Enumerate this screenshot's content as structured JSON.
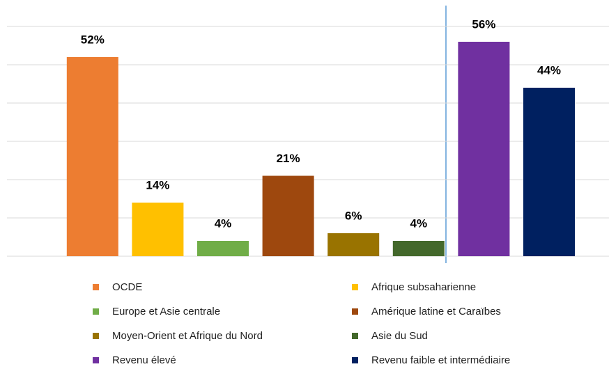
{
  "chart_data": {
    "type": "bar",
    "categories": [
      "OCDE",
      "Afrique subsaharienne",
      "Europe et Asie centrale",
      "Amérique latine et Caraïbes",
      "Moyen-Orient et Afrique du Nord",
      "Asie du Sud",
      "Revenu élevé",
      "Revenu faible et intermédiaire"
    ],
    "values": [
      52,
      14,
      4,
      21,
      6,
      4,
      56,
      44
    ],
    "value_labels": [
      "52%",
      "14%",
      "4%",
      "21%",
      "6%",
      "4%",
      "56%",
      "44%"
    ],
    "colors": [
      "#ed7d31",
      "#ffc000",
      "#70ad47",
      "#9e480e",
      "#997300",
      "#43682b",
      "#7030a0",
      "#002060"
    ],
    "ylim": [
      0,
      60
    ],
    "yticks": [
      0,
      10,
      20,
      30,
      40,
      50,
      60
    ],
    "grid": true
  }
}
